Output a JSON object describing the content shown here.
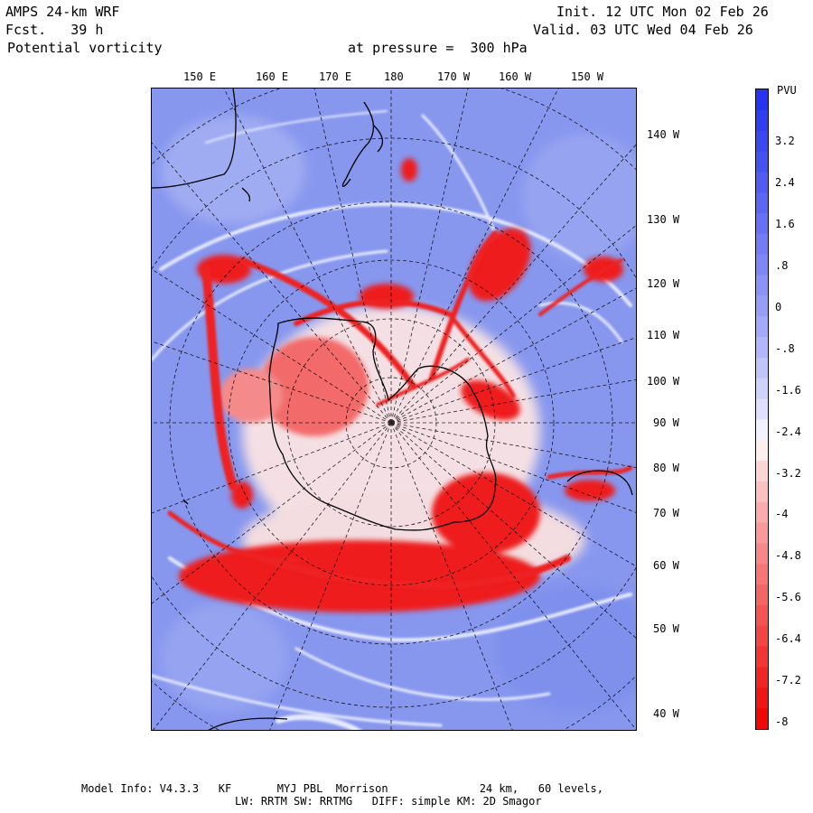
{
  "header": {
    "model": "AMPS 24-km WRF",
    "forecast": "Fcst.   39 h",
    "field": "Potential vorticity",
    "init": "Init. 12 UTC Mon 02 Feb 26",
    "valid": "Valid. 03 UTC Wed 04 Feb 26",
    "level": "at pressure =  300 hPa"
  },
  "longitude_labels_top": [
    "150 E",
    "160 E",
    "170 E",
    "180",
    "170 W",
    "160 W",
    "150 W"
  ],
  "longitude_labels_right": [
    "140 W",
    "130 W",
    "120 W",
    "110 W",
    "100 W",
    "90 W",
    "80 W",
    "70 W",
    "60 W",
    "50 W",
    "40 W"
  ],
  "colorbar": {
    "unit": "PVU",
    "labels": [
      "3.2",
      "2.4",
      "1.6",
      ".8",
      "0",
      "-.8",
      "-1.6",
      "-2.4",
      "-3.2",
      "-4",
      "-4.8",
      "-5.6",
      "-6.4",
      "-7.2",
      "-8"
    ],
    "min": -8,
    "max": 4,
    "positive_color": "#1f2ff0",
    "neutral_color": "#ffffff",
    "negative_color": "#f00000"
  },
  "footer": {
    "line1": "Model Info: V4.3.3   KF       MYJ PBL  Morrison              24 km,   60 levels,",
    "line2": "LW: RRTM SW: RRTMG   DIFF: simple KM: 2D Smagor"
  }
}
